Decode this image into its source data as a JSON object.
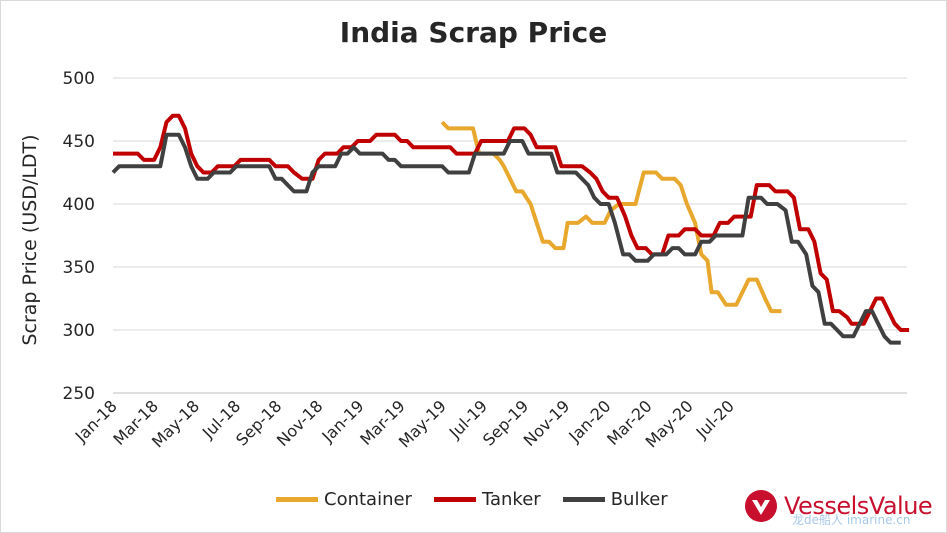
{
  "chart_data": {
    "type": "line",
    "title": "India Scrap Price",
    "xlabel": "",
    "ylabel": "Scrap Price (USD/LDT)",
    "ylim": [
      250,
      500
    ],
    "yticks": [
      250,
      300,
      350,
      400,
      450,
      500
    ],
    "xtick_labels": [
      "Jan-18",
      "Mar-18",
      "May-18",
      "Jul-18",
      "Sep-18",
      "Nov-18",
      "Jan-19",
      "Mar-19",
      "May-19",
      "Jul-19",
      "Sep-19",
      "Nov-19",
      "Jan-20",
      "Mar-20",
      "May-20",
      "Jul-20"
    ],
    "x_range_months": [
      0,
      30
    ],
    "grid": "horizontal",
    "legend_position": "bottom",
    "series": [
      {
        "name": "Container",
        "color": "#e8a82e",
        "points": [
          [
            16.0,
            465
          ],
          [
            16.3,
            460
          ],
          [
            17.0,
            460
          ],
          [
            17.5,
            460
          ],
          [
            17.8,
            440
          ],
          [
            18.5,
            440
          ],
          [
            18.8,
            435
          ],
          [
            19.0,
            430
          ],
          [
            19.3,
            420
          ],
          [
            19.6,
            410
          ],
          [
            19.9,
            410
          ],
          [
            20.3,
            400
          ],
          [
            20.6,
            385
          ],
          [
            20.9,
            370
          ],
          [
            21.2,
            370
          ],
          [
            21.5,
            365
          ],
          [
            21.9,
            365
          ],
          [
            22.1,
            385
          ],
          [
            22.6,
            385
          ],
          [
            23.0,
            390
          ],
          [
            23.3,
            385
          ],
          [
            23.9,
            385
          ],
          [
            24.2,
            395
          ],
          [
            24.6,
            400
          ],
          [
            25.4,
            400
          ],
          [
            25.8,
            425
          ],
          [
            26.4,
            425
          ],
          [
            26.7,
            420
          ],
          [
            27.3,
            420
          ],
          [
            27.6,
            415
          ],
          [
            27.9,
            400
          ],
          [
            28.3,
            385
          ],
          [
            28.6,
            360
          ],
          [
            28.9,
            355
          ],
          [
            29.1,
            330
          ],
          [
            29.4,
            330
          ],
          [
            29.8,
            320
          ],
          [
            30.3,
            320
          ],
          [
            30.6,
            330
          ],
          [
            30.9,
            340
          ],
          [
            31.3,
            340
          ],
          [
            31.7,
            325
          ],
          [
            32.0,
            315
          ],
          [
            32.5,
            315
          ]
        ]
      },
      {
        "name": "Tanker",
        "color": "#c00000",
        "points": [
          [
            0.0,
            440
          ],
          [
            1.2,
            440
          ],
          [
            1.5,
            435
          ],
          [
            2.0,
            435
          ],
          [
            2.3,
            445
          ],
          [
            2.6,
            465
          ],
          [
            2.9,
            470
          ],
          [
            3.2,
            470
          ],
          [
            3.5,
            460
          ],
          [
            3.8,
            440
          ],
          [
            4.1,
            430
          ],
          [
            4.4,
            425
          ],
          [
            4.8,
            425
          ],
          [
            5.1,
            430
          ],
          [
            5.9,
            430
          ],
          [
            6.2,
            435
          ],
          [
            7.6,
            435
          ],
          [
            7.9,
            430
          ],
          [
            8.5,
            430
          ],
          [
            8.8,
            425
          ],
          [
            9.2,
            420
          ],
          [
            9.7,
            420
          ],
          [
            10.0,
            435
          ],
          [
            10.3,
            440
          ],
          [
            10.9,
            440
          ],
          [
            11.2,
            445
          ],
          [
            11.6,
            445
          ],
          [
            11.9,
            450
          ],
          [
            12.5,
            450
          ],
          [
            12.8,
            455
          ],
          [
            13.7,
            455
          ],
          [
            14.0,
            450
          ],
          [
            14.3,
            450
          ],
          [
            14.6,
            445
          ],
          [
            16.4,
            445
          ],
          [
            16.7,
            440
          ],
          [
            17.6,
            440
          ],
          [
            17.9,
            450
          ],
          [
            19.2,
            450
          ],
          [
            19.5,
            460
          ],
          [
            20.0,
            460
          ],
          [
            20.3,
            455
          ],
          [
            20.6,
            445
          ],
          [
            21.5,
            445
          ],
          [
            21.8,
            430
          ],
          [
            22.8,
            430
          ],
          [
            23.2,
            425
          ],
          [
            23.5,
            420
          ],
          [
            23.8,
            410
          ],
          [
            24.1,
            405
          ],
          [
            24.5,
            405
          ],
          [
            24.9,
            390
          ],
          [
            25.2,
            375
          ],
          [
            25.5,
            365
          ],
          [
            25.9,
            365
          ],
          [
            26.2,
            360
          ],
          [
            26.7,
            360
          ],
          [
            27.0,
            375
          ],
          [
            27.5,
            375
          ],
          [
            27.8,
            380
          ],
          [
            28.3,
            380
          ],
          [
            28.6,
            375
          ],
          [
            29.2,
            375
          ],
          [
            29.5,
            385
          ],
          [
            29.9,
            385
          ],
          [
            30.2,
            390
          ],
          [
            31.0,
            390
          ],
          [
            31.3,
            415
          ],
          [
            31.9,
            415
          ],
          [
            32.2,
            410
          ],
          [
            32.8,
            410
          ],
          [
            33.1,
            405
          ],
          [
            33.4,
            380
          ],
          [
            33.8,
            380
          ],
          [
            34.1,
            370
          ],
          [
            34.4,
            345
          ],
          [
            34.7,
            340
          ],
          [
            35.0,
            315
          ],
          [
            35.3,
            315
          ],
          [
            35.7,
            310
          ],
          [
            35.9,
            305
          ],
          [
            36.5,
            305
          ],
          [
            36.8,
            315
          ],
          [
            37.1,
            325
          ],
          [
            37.4,
            325
          ],
          [
            37.7,
            315
          ],
          [
            38.0,
            305
          ],
          [
            38.3,
            300
          ],
          [
            38.7,
            300
          ]
        ]
      },
      {
        "name": "Bulker",
        "color": "#404040",
        "points": [
          [
            0.0,
            425
          ],
          [
            0.3,
            430
          ],
          [
            1.2,
            430
          ],
          [
            2.0,
            430
          ],
          [
            2.3,
            430
          ],
          [
            2.6,
            455
          ],
          [
            3.2,
            455
          ],
          [
            3.5,
            445
          ],
          [
            3.8,
            430
          ],
          [
            4.1,
            420
          ],
          [
            4.6,
            420
          ],
          [
            4.9,
            425
          ],
          [
            5.7,
            425
          ],
          [
            6.0,
            430
          ],
          [
            7.6,
            430
          ],
          [
            7.9,
            420
          ],
          [
            8.2,
            420
          ],
          [
            8.5,
            415
          ],
          [
            8.8,
            410
          ],
          [
            9.4,
            410
          ],
          [
            9.7,
            425
          ],
          [
            10.0,
            430
          ],
          [
            10.8,
            430
          ],
          [
            11.1,
            440
          ],
          [
            11.4,
            440
          ],
          [
            11.7,
            445
          ],
          [
            12.0,
            440
          ],
          [
            13.1,
            440
          ],
          [
            13.4,
            435
          ],
          [
            13.7,
            435
          ],
          [
            14.0,
            430
          ],
          [
            16.0,
            430
          ],
          [
            16.3,
            425
          ],
          [
            17.3,
            425
          ],
          [
            17.6,
            440
          ],
          [
            19.0,
            440
          ],
          [
            19.3,
            450
          ],
          [
            19.9,
            450
          ],
          [
            20.2,
            440
          ],
          [
            21.3,
            440
          ],
          [
            21.6,
            425
          ],
          [
            22.5,
            425
          ],
          [
            22.8,
            420
          ],
          [
            23.1,
            415
          ],
          [
            23.4,
            405
          ],
          [
            23.7,
            400
          ],
          [
            24.1,
            400
          ],
          [
            24.4,
            385
          ],
          [
            24.8,
            360
          ],
          [
            25.1,
            360
          ],
          [
            25.4,
            355
          ],
          [
            26.0,
            355
          ],
          [
            26.3,
            360
          ],
          [
            26.9,
            360
          ],
          [
            27.2,
            365
          ],
          [
            27.5,
            365
          ],
          [
            27.8,
            360
          ],
          [
            28.3,
            360
          ],
          [
            28.6,
            370
          ],
          [
            29.0,
            370
          ],
          [
            29.3,
            375
          ],
          [
            30.6,
            375
          ],
          [
            30.9,
            405
          ],
          [
            31.5,
            405
          ],
          [
            31.8,
            400
          ],
          [
            32.3,
            400
          ],
          [
            32.7,
            395
          ],
          [
            33.0,
            370
          ],
          [
            33.3,
            370
          ],
          [
            33.7,
            360
          ],
          [
            34.0,
            335
          ],
          [
            34.3,
            330
          ],
          [
            34.6,
            305
          ],
          [
            34.9,
            305
          ],
          [
            35.2,
            300
          ],
          [
            35.5,
            295
          ],
          [
            36.0,
            295
          ],
          [
            36.3,
            305
          ],
          [
            36.6,
            315
          ],
          [
            36.9,
            315
          ],
          [
            37.2,
            305
          ],
          [
            37.5,
            295
          ],
          [
            37.8,
            290
          ],
          [
            38.3,
            290
          ]
        ]
      }
    ]
  },
  "legend": {
    "items": [
      {
        "label": "Container",
        "color": "#e8a82e"
      },
      {
        "label": "Tanker",
        "color": "#c00000"
      },
      {
        "label": "Bulker",
        "color": "#404040"
      }
    ]
  },
  "logo": {
    "text": "VesselsValue",
    "icon": "vesselsvalue-logo-icon",
    "color": "#c8102e"
  },
  "watermark": {
    "text": "龙de船人 imarine.cn"
  }
}
